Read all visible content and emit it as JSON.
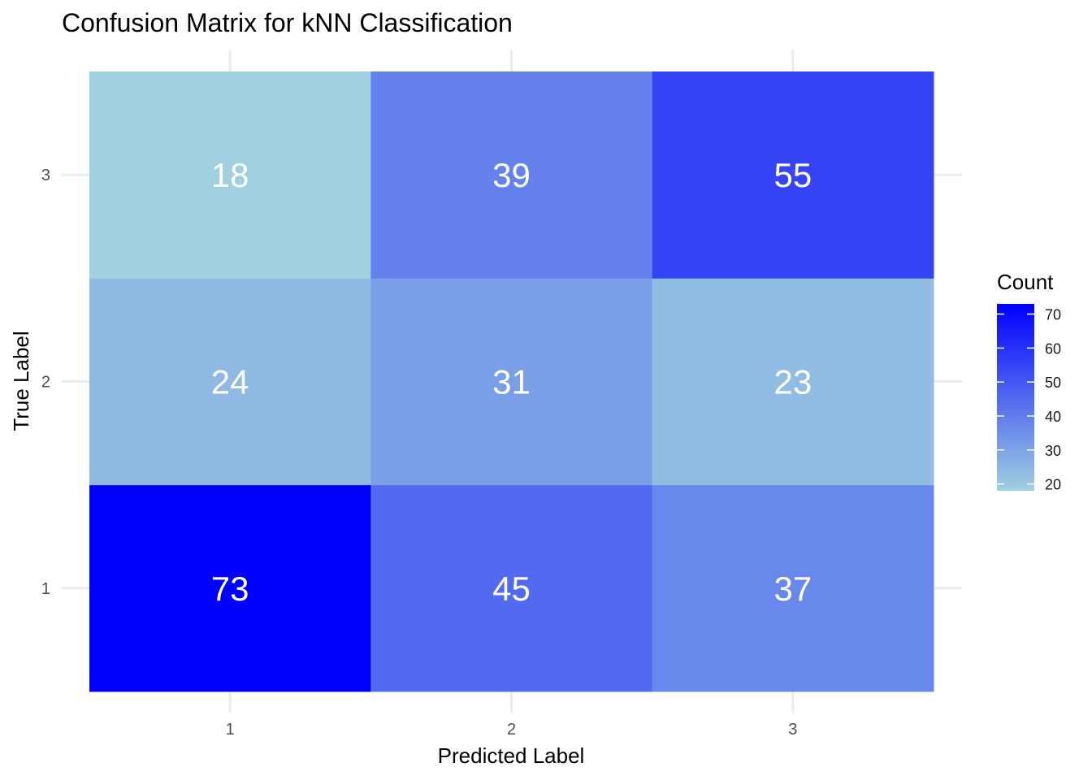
{
  "chart_data": {
    "type": "heatmap",
    "title": "Confusion Matrix for kNN Classification",
    "xlabel": "Predicted Label",
    "ylabel": "True Label",
    "x_categories": [
      "1",
      "2",
      "3"
    ],
    "y_categories": [
      "1",
      "2",
      "3"
    ],
    "cells": [
      {
        "true": "1",
        "predicted": "1",
        "value": 73
      },
      {
        "true": "1",
        "predicted": "2",
        "value": 45
      },
      {
        "true": "1",
        "predicted": "3",
        "value": 37
      },
      {
        "true": "2",
        "predicted": "1",
        "value": 24
      },
      {
        "true": "2",
        "predicted": "2",
        "value": 31
      },
      {
        "true": "2",
        "predicted": "3",
        "value": 23
      },
      {
        "true": "3",
        "predicted": "1",
        "value": 18
      },
      {
        "true": "3",
        "predicted": "2",
        "value": 39
      },
      {
        "true": "3",
        "predicted": "3",
        "value": 55
      }
    ],
    "legend": {
      "title": "Count",
      "ticks": [
        20,
        30,
        40,
        50,
        60,
        70
      ],
      "range": [
        18,
        73
      ],
      "color_low": "#a1d0e0",
      "color_high": "#0000ff",
      "placement": "right"
    },
    "grid": true
  }
}
